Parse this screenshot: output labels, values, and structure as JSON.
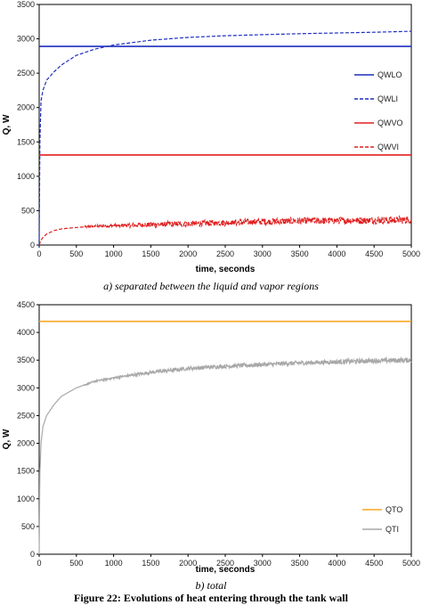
{
  "chart_data": [
    {
      "type": "line",
      "title": "",
      "xlabel": "time, seconds",
      "ylabel": "Q, W",
      "xlim": [
        0,
        5000
      ],
      "ylim": [
        0,
        3500
      ],
      "xticks": [
        0,
        500,
        1000,
        1500,
        2000,
        2500,
        3000,
        3500,
        4000,
        4500,
        5000
      ],
      "yticks": [
        0,
        500,
        1000,
        1500,
        2000,
        2500,
        3000,
        3500
      ],
      "xtick_labels": [
        "0",
        "500",
        "1000",
        "1500",
        "2000",
        "2500",
        "3000",
        "3500",
        "4000",
        "4500",
        "5000"
      ],
      "ytick_labels": [
        "0",
        "500",
        "1000",
        "1500",
        "2000",
        "2500",
        "3000",
        "3500"
      ],
      "grid": false,
      "legend_position": "right",
      "series": [
        {
          "name": "QWLO",
          "color": "#1f2fbf",
          "style": "solid",
          "x": [
            0,
            5000
          ],
          "y": [
            2890,
            2890
          ]
        },
        {
          "name": "QWLI",
          "color": "#1f2fbf",
          "style": "dashed",
          "x": [
            0,
            10,
            25,
            50,
            100,
            200,
            300,
            500,
            750,
            1000,
            1500,
            2000,
            2500,
            3000,
            3500,
            4000,
            4500,
            5000
          ],
          "y": [
            0,
            1500,
            2100,
            2250,
            2400,
            2520,
            2620,
            2760,
            2850,
            2910,
            2980,
            3020,
            3045,
            3060,
            3075,
            3085,
            3095,
            3110
          ]
        },
        {
          "name": "QWVO",
          "color": "#e02020",
          "style": "solid",
          "x": [
            0,
            5000
          ],
          "y": [
            1310,
            1310
          ]
        },
        {
          "name": "QWVI",
          "color": "#e02020",
          "style": "dashed",
          "x": [
            0,
            20,
            50,
            100,
            200,
            300,
            500,
            700,
            1000,
            1500,
            2000,
            2500,
            3000,
            3500,
            4000,
            4500,
            5000
          ],
          "y": [
            0,
            60,
            110,
            160,
            210,
            235,
            255,
            270,
            280,
            295,
            310,
            325,
            340,
            350,
            355,
            360,
            365
          ]
        }
      ]
    },
    {
      "type": "line",
      "title": "",
      "xlabel": "time, seconds",
      "ylabel": "Q, W",
      "xlim": [
        0,
        5000
      ],
      "ylim": [
        0,
        4500
      ],
      "xticks": [
        0,
        500,
        1000,
        1500,
        2000,
        2500,
        3000,
        3500,
        4000,
        4500,
        5000
      ],
      "yticks": [
        0,
        500,
        1000,
        1500,
        2000,
        2500,
        3000,
        3500,
        4000,
        4500
      ],
      "xtick_labels": [
        "0",
        "500",
        "1000",
        "1500",
        "2000",
        "2500",
        "3000",
        "3500",
        "4000",
        "4500",
        "5000"
      ],
      "ytick_labels": [
        "0",
        "500",
        "1000",
        "1500",
        "2000",
        "2500",
        "3000",
        "3500",
        "4000",
        "4500"
      ],
      "grid": false,
      "legend_position": "right",
      "series": [
        {
          "name": "QTO",
          "color": "#f5a623",
          "style": "solid",
          "x": [
            0,
            5000
          ],
          "y": [
            4200,
            4200
          ]
        },
        {
          "name": "QTI",
          "color": "#a8a8a8",
          "style": "solid",
          "x": [
            0,
            10,
            25,
            50,
            100,
            200,
            300,
            500,
            750,
            1000,
            1500,
            2000,
            2500,
            3000,
            3500,
            4000,
            4500,
            5000
          ],
          "y": [
            0,
            1500,
            2000,
            2300,
            2500,
            2700,
            2850,
            3000,
            3120,
            3180,
            3280,
            3350,
            3390,
            3420,
            3450,
            3470,
            3490,
            3500
          ]
        }
      ]
    }
  ],
  "captions": {
    "a": "a)    separated between the liquid and vapor regions",
    "b": "b)    total",
    "figure": "Figure 22: Evolutions of heat entering through the tank wall"
  }
}
